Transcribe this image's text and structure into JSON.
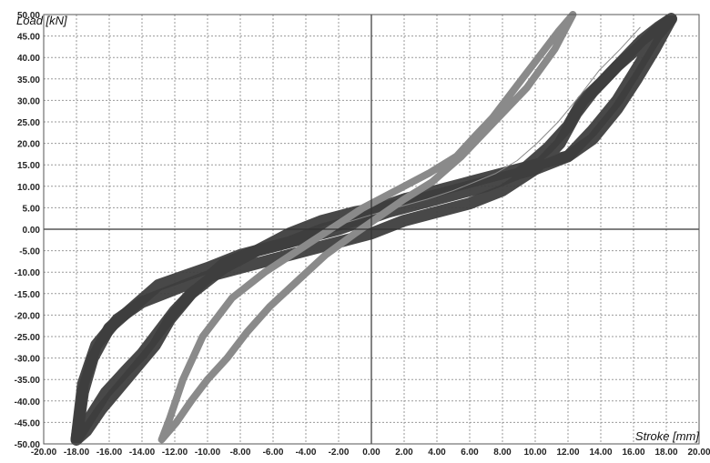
{
  "chart_data": {
    "type": "line",
    "title": "",
    "xlabel": "Stroke [mm]",
    "ylabel": "Load [kN]",
    "xlim": [
      -20,
      20
    ],
    "ylim": [
      -50,
      50
    ],
    "grid": true,
    "x_ticks": [
      "-20.00",
      "-18.00",
      "-16.00",
      "-14.00",
      "-12.00",
      "-10.00",
      "-8.00",
      "-6.00",
      "-4.00",
      "-2.00",
      "0.00",
      "2.00",
      "4.00",
      "6.00",
      "8.00",
      "10.00",
      "12.00",
      "14.00",
      "16.00",
      "18.00",
      "20.00"
    ],
    "y_ticks": [
      "50.00",
      "45.00",
      "40.00",
      "35.00",
      "30.00",
      "25.00",
      "20.00",
      "15.00",
      "10.00",
      "5.00",
      "0.00",
      "-5.00",
      "-10.00",
      "-15.00",
      "-20.00",
      "-25.00",
      "-30.00",
      "-35.00",
      "-40.00",
      "-45.00",
      "-50.00"
    ],
    "colors": {
      "dark_series": "#3e3e3e",
      "light_series": "#8a8a8a",
      "grid": "#9a9a9a",
      "axis": "#333333"
    },
    "series": [
      {
        "x": [
          18.3,
          17.3,
          16.2,
          15,
          14,
          12.9,
          12,
          10.8,
          9,
          7,
          5,
          3,
          1,
          -0.5,
          -2,
          -4,
          -6,
          -8,
          -10,
          -11.5,
          -13,
          -14.5,
          -16,
          -17,
          -17.6,
          -18,
          -17.4,
          -16.5,
          -15.4,
          -14.3,
          -13.2,
          -12.3,
          -11,
          -9,
          -7,
          -5,
          -3,
          -1,
          0.5,
          2,
          4,
          6,
          8,
          10,
          12,
          13.5,
          15,
          16.3,
          17.4,
          18.3
        ],
        "y": [
          49,
          46,
          42,
          38,
          34,
          30,
          24,
          19,
          13,
          10,
          8,
          6,
          4,
          2,
          0,
          -2,
          -4,
          -6,
          -9,
          -11,
          -13,
          -18,
          -23,
          -30,
          -38,
          -49,
          -47,
          -42,
          -37,
          -32,
          -27,
          -21,
          -15,
          -9,
          -5,
          -1,
          2,
          4,
          5,
          6,
          8,
          10,
          12,
          14,
          17,
          23,
          30,
          38,
          45,
          49
        ]
      },
      {
        "x": [
          18.3,
          17.5,
          16.5,
          15.5,
          14.5,
          13.5,
          12.5,
          11.5,
          10,
          8,
          6,
          4,
          2,
          0,
          -2,
          -4,
          -6,
          -8,
          -10,
          -12,
          -14,
          -15.5,
          -16.8,
          -17.6,
          -18,
          -17.2,
          -16.2,
          -15,
          -14,
          -13,
          -12,
          -10.5,
          -9,
          -7,
          -5,
          -3,
          -1,
          0.5,
          2,
          4,
          6,
          8,
          10,
          12,
          13.5,
          15,
          16.2,
          17.3,
          18.3
        ],
        "y": [
          49,
          47,
          44,
          40,
          36,
          32,
          27,
          20,
          14,
          9,
          6,
          4,
          2,
          -1,
          -3,
          -5,
          -7,
          -9,
          -11,
          -14,
          -17,
          -21,
          -27,
          -36,
          -49,
          -44,
          -38,
          -33,
          -29,
          -24,
          -19,
          -13,
          -8,
          -5,
          -3,
          0,
          2,
          5,
          7,
          9,
          11,
          13,
          15,
          17,
          21,
          28,
          35,
          42,
          49
        ]
      },
      {
        "x": [
          12.3,
          11.4,
          10.4,
          9.4,
          8.4,
          7.4,
          6.4,
          5.2,
          3.5,
          1.5,
          -0.5,
          -2.5,
          -4.5,
          -6.5,
          -8.5,
          -10.3,
          -11.5,
          -12.3,
          -12.8,
          -11.9,
          -11,
          -10,
          -8.8,
          -7.6,
          -6.2,
          -4.5,
          -2.8,
          -1,
          0.5,
          2,
          3.7,
          5.5,
          7.5,
          9.5,
          11.2,
          12.3
        ],
        "y": [
          50,
          46,
          41,
          36,
          31,
          26,
          22,
          17,
          13,
          9,
          5,
          0,
          -5,
          -10,
          -16,
          -25,
          -35,
          -44,
          -49,
          -45,
          -40,
          -35,
          -30,
          -24,
          -18,
          -12,
          -6,
          -1,
          3,
          7,
          11,
          17,
          25,
          33,
          42,
          50
        ]
      },
      {
        "x": [
          16.4,
          15.2,
          13.9,
          12.7,
          11.4,
          10.1,
          8.9,
          7.6,
          6.3,
          5,
          3.4,
          1.5,
          -0.3,
          -2
        ],
        "y": [
          47,
          42,
          37,
          31,
          25,
          20,
          16,
          13,
          11,
          9,
          7,
          5,
          3,
          1
        ]
      }
    ]
  }
}
